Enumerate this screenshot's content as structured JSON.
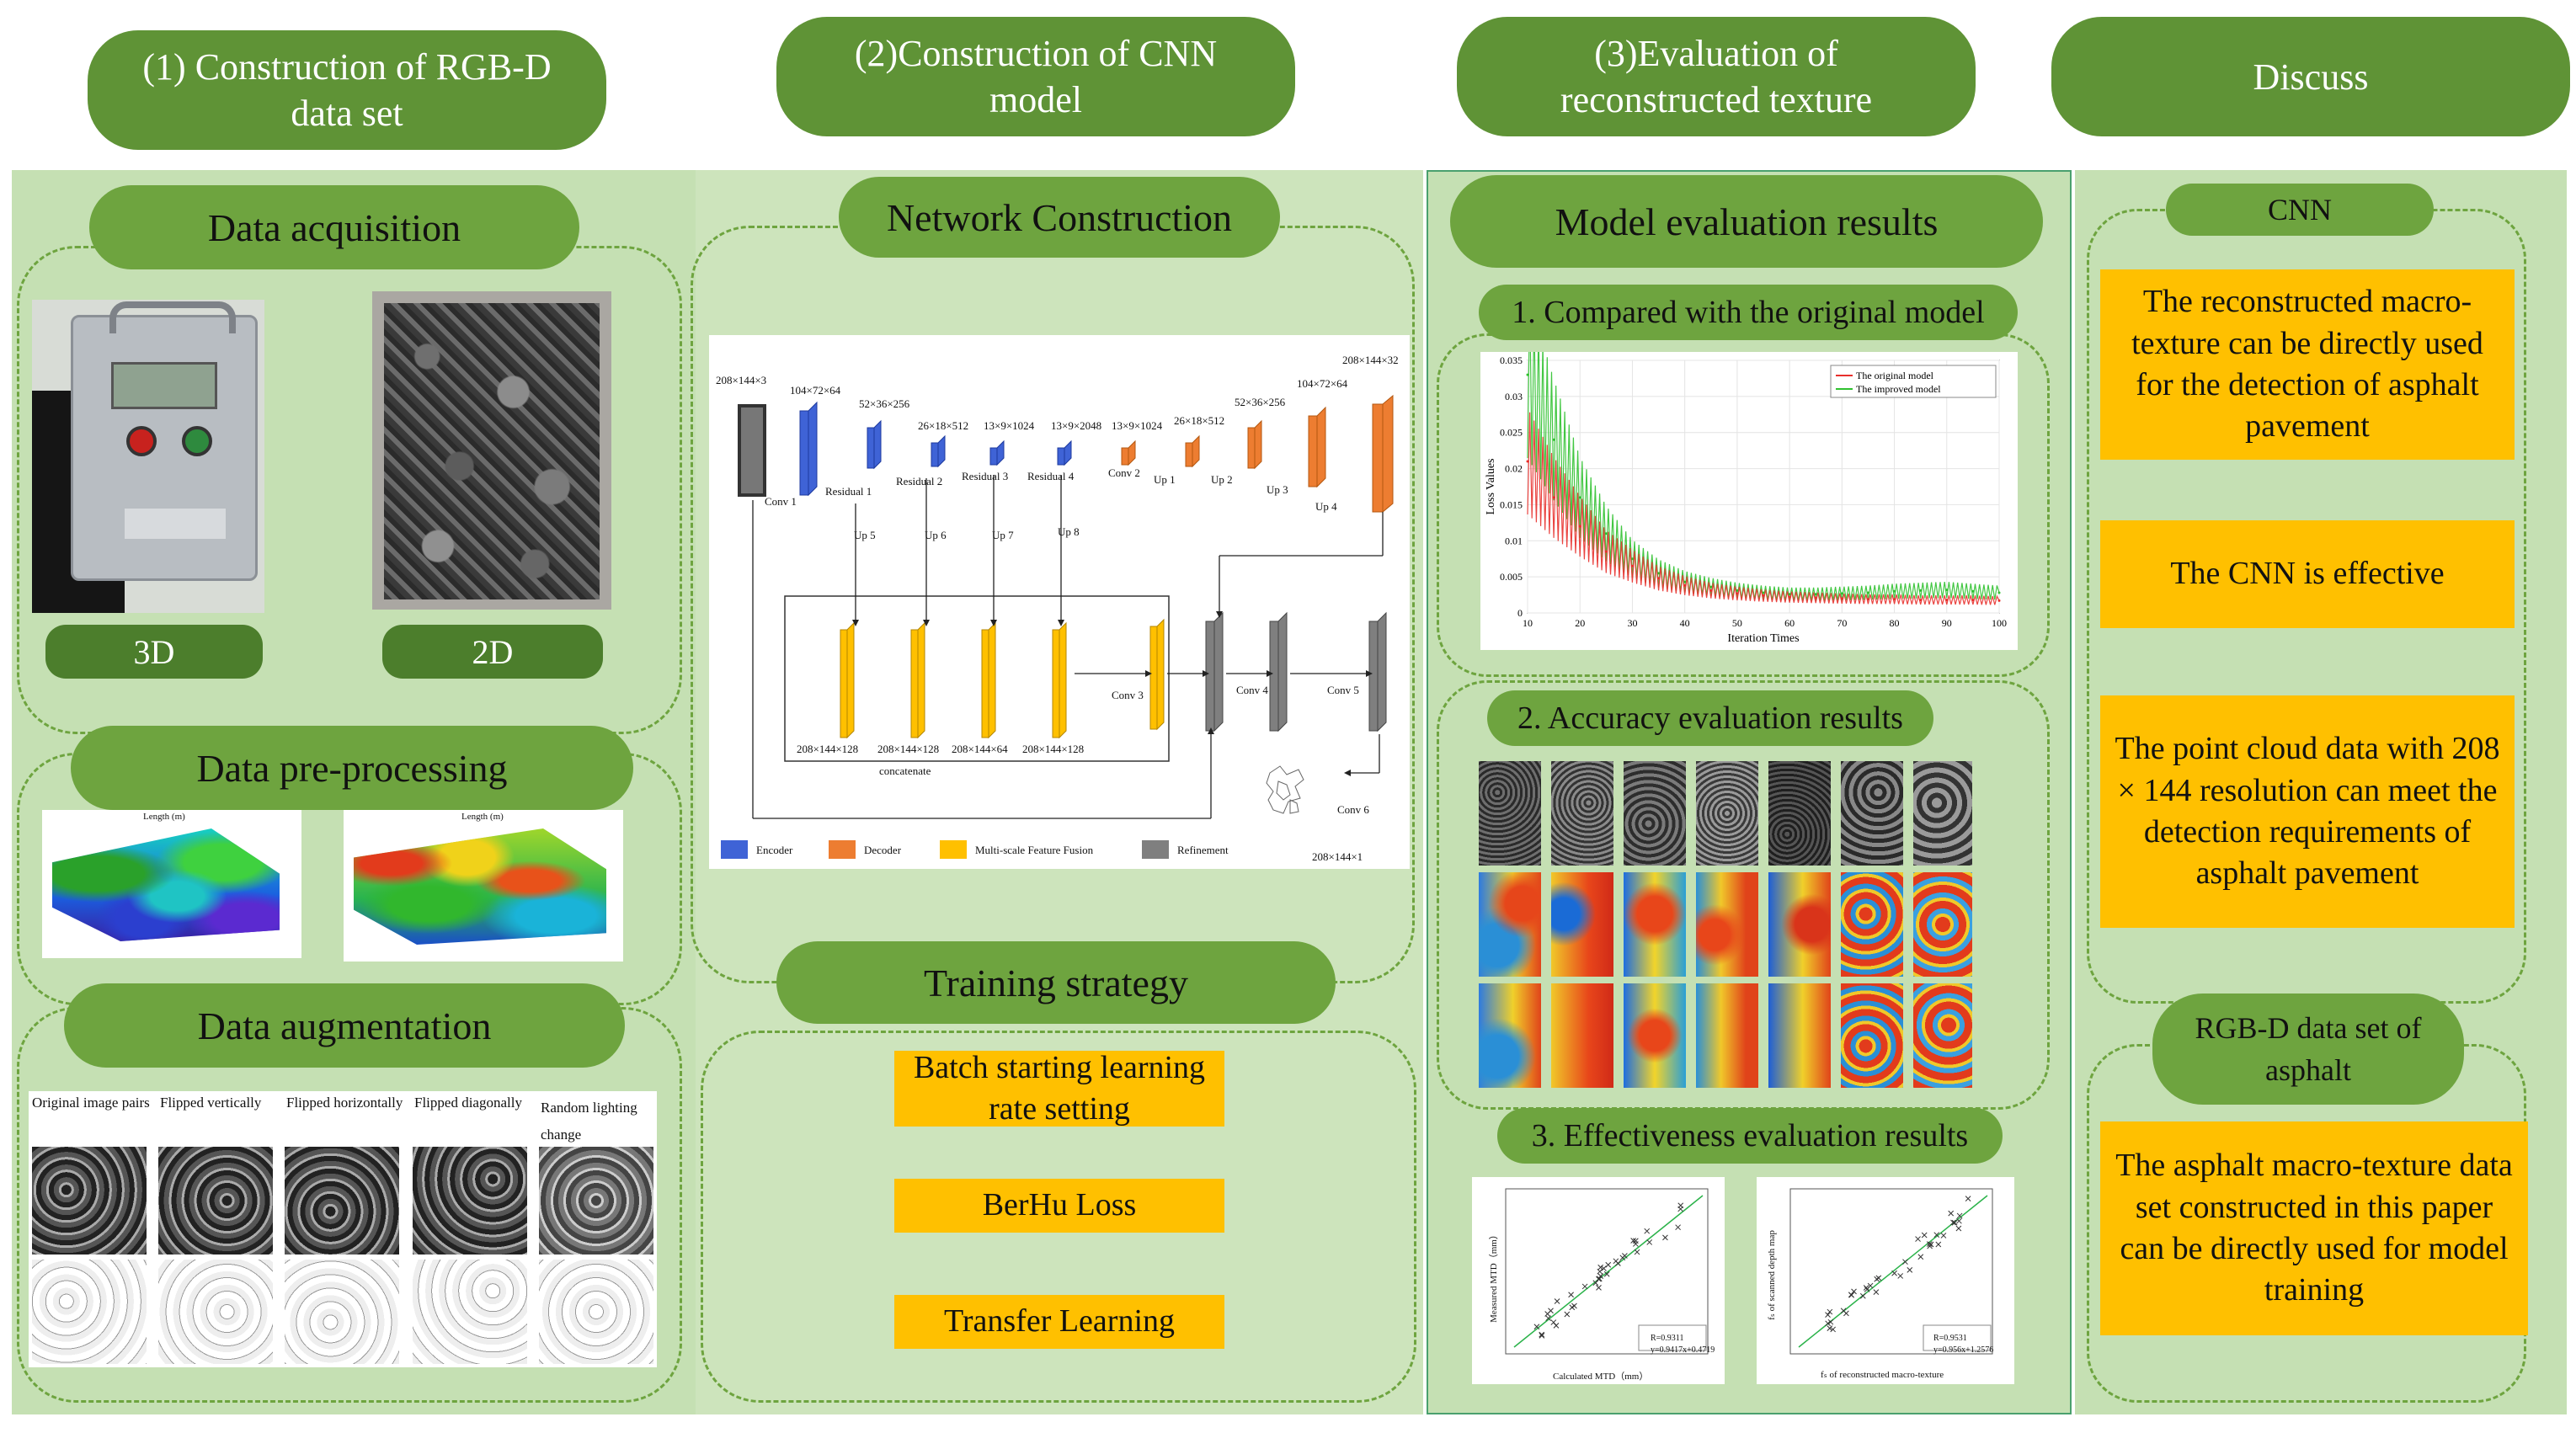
{
  "headers": {
    "h1": "(1) Construction of  RGB-D data set",
    "h2": "(2)Construction of CNN model",
    "h3": "(3)Evaluation of reconstructed texture",
    "h4": "Discuss"
  },
  "col1": {
    "data_acquisition": "Data acquisition",
    "label_3d": "3D",
    "label_2d": "2D",
    "data_preprocessing": "Data pre-processing",
    "plot_axis_label": "Length (m)",
    "data_augmentation": "Data augmentation",
    "aug_labels": [
      "Original image pairs",
      "Flipped vertically",
      "Flipped horizontally",
      "Flipped diagonally",
      "Random lighting change"
    ]
  },
  "col2": {
    "network_construction": "Network Construction",
    "training_strategy": "Training strategy",
    "strategies": [
      "Batch starting learning rate setting",
      "BerHu Loss",
      "Transfer Learning"
    ],
    "net": {
      "input_dim": "208×144×3",
      "enc_dims": [
        "104×72×64",
        "52×36×256",
        "26×18×512",
        "13×9×1024",
        "13×9×2048"
      ],
      "enc_labels": [
        "Conv 1",
        "Residual 1",
        "Residual 2",
        "Residual 3",
        "Residual 4"
      ],
      "dec_dims": [
        "13×9×1024",
        "26×18×512",
        "52×36×256",
        "104×72×64",
        "208×144×32"
      ],
      "dec_labels": [
        "Conv 2",
        "Up 1",
        "Up 2",
        "Up 3",
        "Up 4"
      ],
      "up_labels": [
        "Up 5",
        "Up 6",
        "Up 7",
        "Up 8"
      ],
      "fusion_dims": [
        "208×144×128",
        "208×144×128",
        "208×144×64",
        "208×144×128"
      ],
      "concatenate": "concatenate",
      "conv_labels": [
        "Conv 3",
        "Conv 4",
        "Conv 5",
        "Conv 6"
      ],
      "output_dim": "208×144×1",
      "legend": [
        "Encoder",
        "Decoder",
        "Multi-scale Feature Fusion",
        "Refinement"
      ]
    }
  },
  "col3": {
    "model_eval": "Model evaluation results",
    "sub1": "1. Compared with the original model",
    "sub2": "2. Accuracy evaluation results",
    "sub3": "3. Effectiveness evaluation results",
    "scatter1": {
      "xlabel": "Calculated MTD（mm）",
      "ylabel": "Measured MTD（mm）",
      "stats": [
        "R=0.9311",
        "y=0.9417x+0.4719"
      ]
    },
    "scatter2": {
      "xlabel": "fₛ of reconstructed macro-texture",
      "ylabel": "fₛ of scanned depth map",
      "stats": [
        "R=0.9531",
        "y=0.956x+1.2576"
      ]
    }
  },
  "col4": {
    "cnn_title": "CNN",
    "cnn_items": [
      "The reconstructed macro-texture can be directly used for the detection of asphalt pavement",
      "The CNN  is effective",
      "The point cloud data with 208 × 144 resolution can meet the detection requirements of asphalt pavement"
    ],
    "rgbd_title": "RGB-D data set of asphalt",
    "rgbd_item": "The asphalt macro-texture data set constructed in this paper can be directly used for model training"
  },
  "chart_data": {
    "type": "line",
    "title": "",
    "xlabel": "Iteration Times",
    "ylabel": "Loss Values",
    "xlim": [
      10,
      100
    ],
    "ylim": [
      0,
      0.035
    ],
    "xticks": [
      "10",
      "20",
      "30",
      "40",
      "50",
      "60",
      "70",
      "80",
      "90",
      "100"
    ],
    "yticks": [
      "0",
      "0.005",
      "0.01",
      "0.015",
      "0.02",
      "0.025",
      "0.03",
      "0.035"
    ],
    "x": [
      10,
      15,
      20,
      25,
      30,
      35,
      40,
      45,
      50,
      55,
      60,
      65,
      70,
      75,
      80,
      85,
      90,
      95,
      100
    ],
    "series": [
      {
        "name": "The original model",
        "color": "#e8302c",
        "values": [
          0.021,
          0.016,
          0.012,
          0.0085,
          0.0065,
          0.0048,
          0.0038,
          0.0031,
          0.0027,
          0.0024,
          0.0022,
          0.0021,
          0.002,
          0.0019,
          0.0019,
          0.0018,
          0.0018,
          0.0018,
          0.0017
        ]
      },
      {
        "name": "The improved model",
        "color": "#2fc12f",
        "values": [
          0.033,
          0.024,
          0.016,
          0.011,
          0.0075,
          0.0055,
          0.0043,
          0.0036,
          0.0031,
          0.0028,
          0.0026,
          0.0026,
          0.0027,
          0.0028,
          0.003,
          0.0031,
          0.0032,
          0.003,
          0.0028
        ]
      }
    ]
  }
}
